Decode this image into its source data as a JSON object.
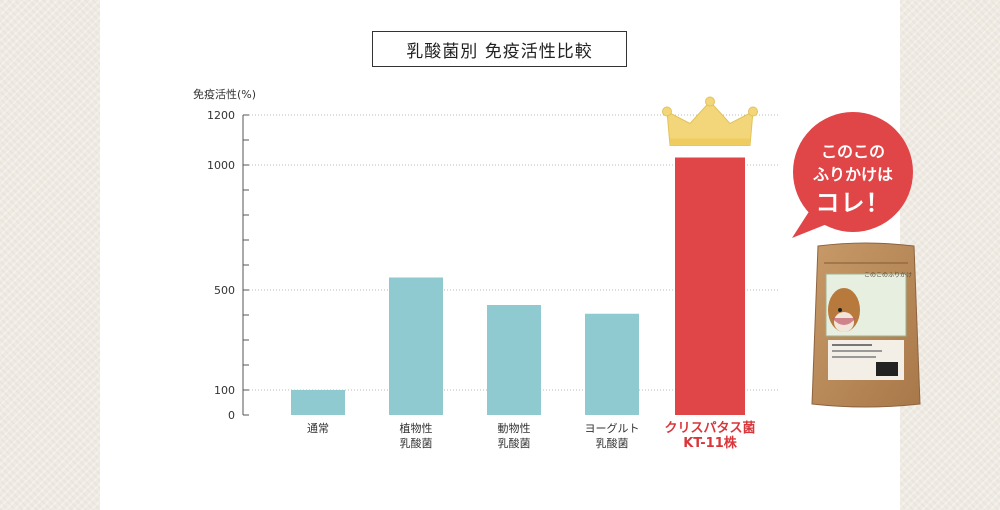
{
  "colors": {
    "bar_default": "#8ecacf",
    "bar_highlight": "#e04547",
    "highlight_text": "#d9363b",
    "badge": "#e04547",
    "crown": "#f3d67a"
  },
  "badge": {
    "line1": "このこの",
    "line2": "ふりかけは",
    "line3": "コレ！"
  },
  "product": {
    "icon": "furikake-package-icon",
    "label_text": "このこのふりかけ"
  },
  "chart_data": {
    "type": "bar",
    "title": "乳酸菌別 免疫活性比較",
    "ylabel": "免疫活性(%)",
    "xlabel": "",
    "ylim": [
      0,
      1200
    ],
    "yticks": [
      0,
      100,
      500,
      1000,
      1200
    ],
    "grid": true,
    "categories": [
      [
        "通常"
      ],
      [
        "植物性",
        "乳酸菌"
      ],
      [
        "動物性",
        "乳酸菌"
      ],
      [
        "ヨーグルト",
        "乳酸菌"
      ],
      [
        "クリスパタス菌",
        "KT-11株"
      ]
    ],
    "values": [
      100,
      550,
      440,
      405,
      1030
    ],
    "highlight_index": 4
  }
}
